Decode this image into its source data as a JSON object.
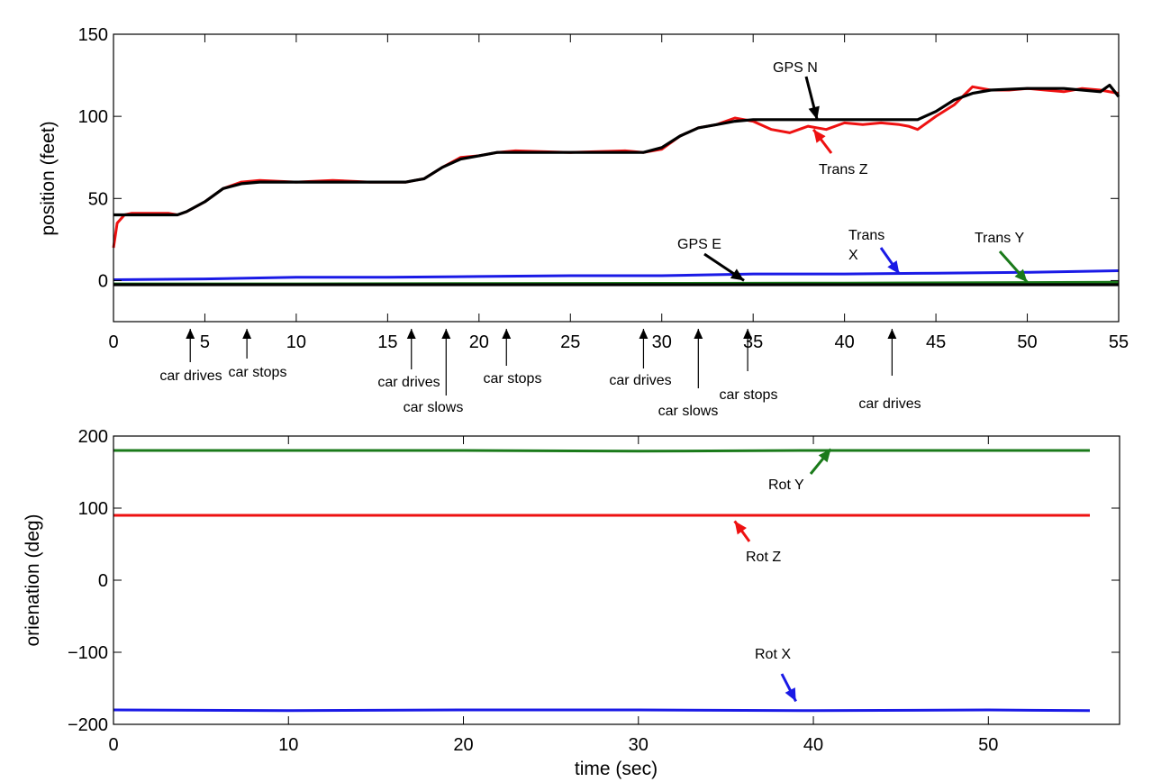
{
  "chart_data": [
    {
      "type": "line",
      "xlabel": "",
      "ylabel": "position (feet)",
      "xlim": [
        0,
        55
      ],
      "ylim": [
        -25,
        150
      ],
      "xticks": [
        0,
        5,
        10,
        15,
        20,
        25,
        30,
        35,
        40,
        45,
        50,
        55
      ],
      "yticks": [
        0,
        50,
        100,
        150
      ],
      "grid": false,
      "colors": {
        "trans_z": "#ee1111",
        "gps_n": "#000000",
        "trans_x": "#1a1ae6",
        "trans_y": "#1a7a1a",
        "gps_e": "#000000"
      },
      "series": [
        {
          "key": "trans_z",
          "name": "Trans Z",
          "x": [
            0,
            0.2,
            0.6,
            1,
            2,
            3,
            3.5,
            4,
            5,
            6,
            7,
            8,
            10,
            12,
            14,
            16,
            16.5,
            17,
            18,
            19,
            20,
            21,
            22,
            25,
            28,
            29,
            30,
            31,
            32,
            33,
            33.5,
            34,
            35,
            36,
            37,
            38,
            39,
            40,
            41,
            42,
            43,
            43.5,
            44,
            45,
            46,
            47,
            48,
            49,
            50,
            51,
            52,
            53,
            54,
            55
          ],
          "y": [
            20,
            35,
            40,
            41,
            41,
            41,
            40,
            42,
            48,
            56,
            60,
            61,
            60,
            61,
            60,
            60,
            61,
            62,
            69,
            75,
            76,
            78,
            79,
            78,
            79,
            78,
            80,
            88,
            93,
            95,
            97,
            99,
            97,
            92,
            90,
            94,
            92,
            96,
            95,
            96,
            95,
            94,
            92,
            100,
            107,
            118,
            116,
            116,
            117,
            116,
            115,
            117,
            116,
            114
          ]
        },
        {
          "key": "gps_n",
          "name": "GPS N",
          "x": [
            0,
            0.3,
            1,
            2,
            3,
            3.5,
            4,
            5,
            6,
            7,
            8,
            10,
            12,
            14,
            16,
            16.5,
            17,
            18,
            19,
            20,
            21,
            22,
            25,
            28,
            29,
            30,
            31,
            32,
            33,
            34,
            35,
            38,
            40,
            42,
            44,
            45,
            46,
            47,
            48,
            50,
            52,
            54,
            54.5,
            55
          ],
          "y": [
            40,
            40,
            40,
            40,
            40,
            40,
            42,
            48,
            56,
            59,
            60,
            60,
            60,
            60,
            60,
            61,
            62,
            69,
            74,
            76,
            78,
            78,
            78,
            78,
            78,
            81,
            88,
            93,
            95,
            97,
            98,
            98,
            98,
            98,
            98,
            103,
            110,
            114,
            116,
            117,
            117,
            115,
            119,
            112
          ]
        },
        {
          "key": "trans_x",
          "name": "Trans X",
          "x": [
            0,
            5,
            10,
            15,
            20,
            25,
            30,
            35,
            40,
            45,
            50,
            55
          ],
          "y": [
            0.5,
            1,
            2,
            2,
            2.5,
            3,
            3,
            4,
            4,
            4.5,
            5,
            6
          ]
        },
        {
          "key": "trans_y",
          "name": "Trans Y",
          "x": [
            0,
            10,
            20,
            30,
            40,
            50,
            55
          ],
          "y": [
            -2,
            -2,
            -1.8,
            -1.7,
            -1.5,
            -1.2,
            -1
          ]
        },
        {
          "key": "gps_e",
          "name": "GPS E",
          "x": [
            0,
            10,
            20,
            30,
            40,
            50,
            55
          ],
          "y": [
            -2.5,
            -2.5,
            -2.5,
            -2.5,
            -2.5,
            -2.5,
            -2.5
          ]
        }
      ],
      "annotations": [
        {
          "key": "gps_n",
          "text": "GPS N",
          "x": 38.5,
          "y": 98
        },
        {
          "key": "trans_z",
          "text": "Trans Z",
          "x": 38.3,
          "y": 92
        },
        {
          "key": "gps_e",
          "text": "GPS E",
          "x": 34.5,
          "y": 0
        },
        {
          "key": "trans_x_1",
          "text": "Trans",
          "x": 43,
          "y": 4
        },
        {
          "key": "trans_x_2",
          "text": "X",
          "x": 43,
          "y": 4
        },
        {
          "key": "trans_y",
          "text": "Trans Y",
          "x": 50,
          "y": -1
        }
      ],
      "events": [
        {
          "text": "car drives",
          "x": 4.2
        },
        {
          "text": "car stops",
          "x": 7.3
        },
        {
          "text": "car drives",
          "x": 16.3
        },
        {
          "text": "car slows",
          "x": 18.2
        },
        {
          "text": "car stops",
          "x": 21.5
        },
        {
          "text": "car drives",
          "x": 29
        },
        {
          "text": "car slows",
          "x": 32
        },
        {
          "text": "car stops",
          "x": 34.7
        },
        {
          "text": "car drives",
          "x": 42.6
        }
      ]
    },
    {
      "type": "line",
      "xlabel": "time (sec)",
      "ylabel": "orienation (deg)",
      "xlim": [
        0,
        57.5
      ],
      "ylim": [
        -200,
        200
      ],
      "xticks": [
        0,
        10,
        20,
        30,
        40,
        50
      ],
      "yticks": [
        -200,
        -100,
        0,
        100,
        200
      ],
      "grid": false,
      "colors": {
        "rot_y": "#1a7a1a",
        "rot_z": "#ee1111",
        "rot_x": "#1a1ae6"
      },
      "series": [
        {
          "key": "rot_y",
          "name": "Rot Y",
          "x": [
            0,
            10,
            20,
            30,
            40,
            50,
            55.8
          ],
          "y": [
            180,
            180,
            180,
            179,
            180,
            180,
            180
          ]
        },
        {
          "key": "rot_z",
          "name": "Rot Z",
          "x": [
            0,
            10,
            20,
            30,
            40,
            50,
            55.8
          ],
          "y": [
            90,
            90,
            90,
            90,
            90,
            90,
            90
          ]
        },
        {
          "key": "rot_x",
          "name": "Rot X",
          "x": [
            0,
            10,
            20,
            30,
            40,
            50,
            55.8
          ],
          "y": [
            -180,
            -181,
            -180,
            -180,
            -181,
            -180,
            -181
          ]
        }
      ],
      "annotations": [
        {
          "key": "rot_y",
          "text": "Rot Y",
          "x": 41,
          "y": 182
        },
        {
          "key": "rot_z",
          "text": "Rot Z",
          "x": 35.5,
          "y": 82
        },
        {
          "key": "rot_x",
          "text": "Rot X",
          "x": 39,
          "y": -168
        }
      ]
    }
  ]
}
